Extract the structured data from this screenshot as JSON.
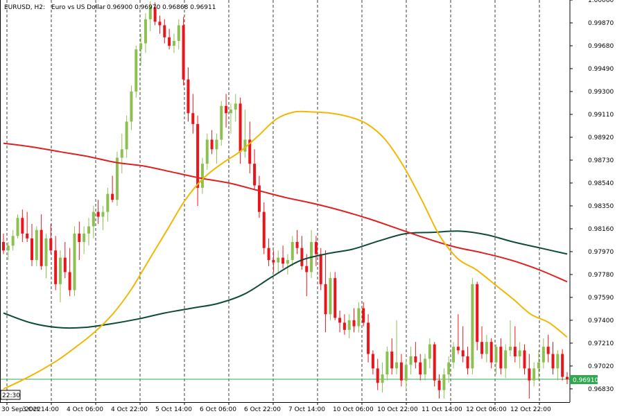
{
  "header": {
    "symbol": "EURUSD, H2:",
    "description": "Euro vs US Dollar",
    "ohlc": "0.96900 0.96970 0.96868 0.96911"
  },
  "colors": {
    "bull": "#8cc152",
    "bear": "#e8151b",
    "ma_fast": "#f2b705",
    "ma_mid": "#e02020",
    "ma_slow": "#0d4a3a",
    "price_line": "#2fa84f",
    "price_label_bg": "#2fa84f",
    "grid": "#000000",
    "background": "#ffffff"
  },
  "chart_data": {
    "type": "candlestick",
    "ylim": [
      0.9672,
      1.0006
    ],
    "y_ticks": [
      "1.00060",
      "0.99870",
      "0.99680",
      "0.99490",
      "0.99300",
      "0.99110",
      "0.98920",
      "0.98730",
      "0.98540",
      "0.98350",
      "0.98160",
      "0.97970",
      "0.97780",
      "0.97590",
      "0.97400",
      "0.97210",
      "0.97020",
      "0.96830"
    ],
    "x_ticks": [
      "30 Sep 2022",
      "3 Oct 14:00",
      "4 Oct 06:00",
      "4 Oct 22:00",
      "5 Oct 14:00",
      "6 Oct 06:00",
      "6 Oct 22:00",
      "7 Oct 14:00",
      "10 Oct 06:00",
      "10 Oct 22:00",
      "11 Oct 14:00",
      "12 Oct 06:00",
      "12 Oct 22:00"
    ],
    "corner_time": "22:30",
    "current_price": "0.96910",
    "grid": "vertical dashed",
    "candles": [
      [
        0.9805,
        0.9812,
        0.9795,
        0.9798
      ],
      [
        0.9798,
        0.9805,
        0.979,
        0.9802
      ],
      [
        0.9802,
        0.9815,
        0.9798,
        0.981
      ],
      [
        0.981,
        0.9828,
        0.9808,
        0.9825
      ],
      [
        0.9825,
        0.9832,
        0.9805,
        0.9812
      ],
      [
        0.9812,
        0.983,
        0.9805,
        0.9808
      ],
      [
        0.9808,
        0.982,
        0.9785,
        0.979
      ],
      [
        0.979,
        0.9818,
        0.9785,
        0.9815
      ],
      [
        0.9815,
        0.9828,
        0.9782,
        0.9785
      ],
      [
        0.9785,
        0.9812,
        0.9775,
        0.9808
      ],
      [
        0.9808,
        0.982,
        0.9795,
        0.9798
      ],
      [
        0.9798,
        0.981,
        0.9765,
        0.977
      ],
      [
        0.977,
        0.9798,
        0.9755,
        0.9792
      ],
      [
        0.9792,
        0.9805,
        0.9775,
        0.978
      ],
      [
        0.978,
        0.98,
        0.976,
        0.9765
      ],
      [
        0.9765,
        0.9818,
        0.976,
        0.9812
      ],
      [
        0.9812,
        0.9822,
        0.979,
        0.9805
      ],
      [
        0.9805,
        0.9818,
        0.9795,
        0.9812
      ],
      [
        0.9812,
        0.9825,
        0.9802,
        0.9818
      ],
      [
        0.9818,
        0.9835,
        0.9808,
        0.983
      ],
      [
        0.983,
        0.984,
        0.982,
        0.9826
      ],
      [
        0.9826,
        0.9835,
        0.9815,
        0.983
      ],
      [
        0.983,
        0.985,
        0.9822,
        0.9845
      ],
      [
        0.9845,
        0.986,
        0.9838,
        0.984
      ],
      [
        0.984,
        0.988,
        0.9835,
        0.9875
      ],
      [
        0.9875,
        0.9895,
        0.9862,
        0.9882
      ],
      [
        0.9882,
        0.991,
        0.9875,
        0.9905
      ],
      [
        0.9905,
        0.9935,
        0.9898,
        0.993
      ],
      [
        0.993,
        0.9968,
        0.9925,
        0.9965
      ],
      [
        0.9965,
        0.9978,
        0.9952,
        0.997
      ],
      [
        0.997,
        0.9995,
        0.9962,
        0.999
      ],
      [
        0.999,
        1.0005,
        0.998,
        1.0
      ],
      [
        1.0,
        1.0004,
        0.9985,
        0.9988
      ],
      [
        0.9988,
        0.9993,
        0.9978,
        0.9985
      ],
      [
        0.9985,
        0.999,
        0.997,
        0.9975
      ],
      [
        0.9975,
        0.9982,
        0.9965,
        0.9968
      ],
      [
        0.9968,
        0.9978,
        0.9962,
        0.9972
      ],
      [
        0.9972,
        0.999,
        0.9965,
        0.9985
      ],
      [
        0.9985,
        0.9992,
        0.9935,
        0.994
      ],
      [
        0.994,
        0.995,
        0.9905,
        0.9912
      ],
      [
        0.9912,
        0.9928,
        0.9895,
        0.9903
      ],
      [
        0.9903,
        0.991,
        0.9835,
        0.985
      ],
      [
        0.985,
        0.9875,
        0.9845,
        0.987
      ],
      [
        0.987,
        0.9895,
        0.9865,
        0.989
      ],
      [
        0.989,
        0.9898,
        0.9878,
        0.9882
      ],
      [
        0.9882,
        0.9895,
        0.987,
        0.989
      ],
      [
        0.989,
        0.9922,
        0.9885,
        0.9918
      ],
      [
        0.9918,
        0.9928,
        0.99,
        0.9912
      ],
      [
        0.9912,
        0.992,
        0.9895,
        0.9915
      ],
      [
        0.9915,
        0.9928,
        0.9905,
        0.992
      ],
      [
        0.992,
        0.9925,
        0.987,
        0.988
      ],
      [
        0.988,
        0.9915,
        0.9875,
        0.989
      ],
      [
        0.989,
        0.9905,
        0.9862,
        0.987
      ],
      [
        0.987,
        0.9882,
        0.9848,
        0.9852
      ],
      [
        0.9852,
        0.986,
        0.9825,
        0.983
      ],
      [
        0.983,
        0.9838,
        0.9795,
        0.98
      ],
      [
        0.98,
        0.9808,
        0.9785,
        0.979
      ],
      [
        0.979,
        0.9798,
        0.978,
        0.9788
      ],
      [
        0.9788,
        0.9798,
        0.978,
        0.9792
      ],
      [
        0.9792,
        0.9802,
        0.9783,
        0.9787
      ],
      [
        0.9787,
        0.9795,
        0.9778,
        0.979
      ],
      [
        0.979,
        0.981,
        0.9785,
        0.9805
      ],
      [
        0.9805,
        0.9815,
        0.9795,
        0.98
      ],
      [
        0.98,
        0.981,
        0.9782,
        0.9785
      ],
      [
        0.9785,
        0.9795,
        0.976,
        0.978
      ],
      [
        0.978,
        0.9815,
        0.9775,
        0.9805
      ],
      [
        0.9805,
        0.981,
        0.9785,
        0.9795
      ],
      [
        0.9795,
        0.98,
        0.9765,
        0.977
      ],
      [
        0.977,
        0.9798,
        0.973,
        0.9745
      ],
      [
        0.9745,
        0.978,
        0.974,
        0.9775
      ],
      [
        0.9775,
        0.978,
        0.974,
        0.9742
      ],
      [
        0.9742,
        0.9748,
        0.973,
        0.9738
      ],
      [
        0.9738,
        0.9745,
        0.9728,
        0.9732
      ],
      [
        0.9732,
        0.9745,
        0.9725,
        0.974
      ],
      [
        0.974,
        0.975,
        0.973,
        0.9735
      ],
      [
        0.9735,
        0.9755,
        0.973,
        0.975
      ],
      [
        0.975,
        0.9755,
        0.9735,
        0.9738
      ],
      [
        0.9738,
        0.9745,
        0.9705,
        0.9712
      ],
      [
        0.9712,
        0.9715,
        0.9695,
        0.97
      ],
      [
        0.97,
        0.9708,
        0.9682,
        0.9688
      ],
      [
        0.9688,
        0.9705,
        0.968,
        0.9695
      ],
      [
        0.9695,
        0.9718,
        0.969,
        0.9714
      ],
      [
        0.9714,
        0.9725,
        0.9695,
        0.97
      ],
      [
        0.97,
        0.974,
        0.9695,
        0.9705
      ],
      [
        0.9705,
        0.9712,
        0.9685,
        0.969
      ],
      [
        0.969,
        0.9708,
        0.9682,
        0.9703
      ],
      [
        0.9703,
        0.9718,
        0.9695,
        0.971
      ],
      [
        0.971,
        0.9722,
        0.97,
        0.9705
      ],
      [
        0.9705,
        0.9712,
        0.969,
        0.9695
      ],
      [
        0.9695,
        0.9712,
        0.969,
        0.9708
      ],
      [
        0.9708,
        0.9725,
        0.97,
        0.972
      ],
      [
        0.972,
        0.9722,
        0.9685,
        0.969
      ],
      [
        0.969,
        0.9695,
        0.9675,
        0.9682
      ],
      [
        0.9682,
        0.97,
        0.9675,
        0.9695
      ],
      [
        0.9695,
        0.971,
        0.9688,
        0.9705
      ],
      [
        0.9705,
        0.9722,
        0.97,
        0.9718
      ],
      [
        0.9718,
        0.9745,
        0.9712,
        0.9715
      ],
      [
        0.9715,
        0.9735,
        0.9705,
        0.971
      ],
      [
        0.971,
        0.9718,
        0.9695,
        0.97
      ],
      [
        0.97,
        0.9775,
        0.9695,
        0.977
      ],
      [
        0.977,
        0.9772,
        0.9715,
        0.9722
      ],
      [
        0.9722,
        0.9735,
        0.9708,
        0.9712
      ],
      [
        0.9712,
        0.9728,
        0.9705,
        0.9722
      ],
      [
        0.9722,
        0.9725,
        0.97,
        0.9705
      ],
      [
        0.9705,
        0.972,
        0.9695,
        0.9718
      ],
      [
        0.9718,
        0.9725,
        0.9695,
        0.97
      ],
      [
        0.97,
        0.972,
        0.9692,
        0.9715
      ],
      [
        0.9715,
        0.974,
        0.971,
        0.9718
      ],
      [
        0.9718,
        0.9735,
        0.9705,
        0.971
      ],
      [
        0.971,
        0.9722,
        0.97,
        0.9715
      ],
      [
        0.9715,
        0.972,
        0.9695,
        0.97
      ],
      [
        0.97,
        0.9712,
        0.9675,
        0.969
      ],
      [
        0.969,
        0.9705,
        0.9685,
        0.97
      ],
      [
        0.97,
        0.9715,
        0.969,
        0.9705
      ],
      [
        0.9705,
        0.9725,
        0.97,
        0.9718
      ],
      [
        0.9718,
        0.9728,
        0.9705,
        0.9712
      ],
      [
        0.9712,
        0.9722,
        0.9695,
        0.97
      ],
      [
        0.97,
        0.9715,
        0.969,
        0.9712
      ],
      [
        0.9712,
        0.9716,
        0.969,
        0.9693
      ],
      [
        0.9693,
        0.9697,
        0.9687,
        0.9691
      ]
    ],
    "ma_fast": [
      0.9683,
      0.969,
      0.9698,
      0.9707,
      0.9718,
      0.973,
      0.9745,
      0.9765,
      0.979,
      0.9815,
      0.984,
      0.9858,
      0.987,
      0.988,
      0.9893,
      0.9907,
      0.9913,
      0.9913,
      0.9912,
      0.9909,
      0.9903,
      0.989,
      0.9868,
      0.984,
      0.981,
      0.9791,
      0.9782,
      0.977,
      0.9758,
      0.9745,
      0.9738,
      0.9726
    ],
    "ma_mid": [
      0.9887,
      0.9884,
      0.988,
      0.9876,
      0.9871,
      0.9868,
      0.9863,
      0.9858,
      0.9854,
      0.9848,
      0.9842,
      0.9837,
      0.9831,
      0.9824,
      0.9816,
      0.9808,
      0.9801,
      0.9796,
      0.979,
      0.9782,
      0.9772
    ],
    "ma_slow": [
      0.9746,
      0.9738,
      0.9734,
      0.9734,
      0.9737,
      0.9741,
      0.9746,
      0.975,
      0.9754,
      0.9762,
      0.9776,
      0.9789,
      0.9795,
      0.9799,
      0.9806,
      0.9812,
      0.9813,
      0.9814,
      0.9811,
      0.9805,
      0.98,
      0.9795
    ]
  }
}
